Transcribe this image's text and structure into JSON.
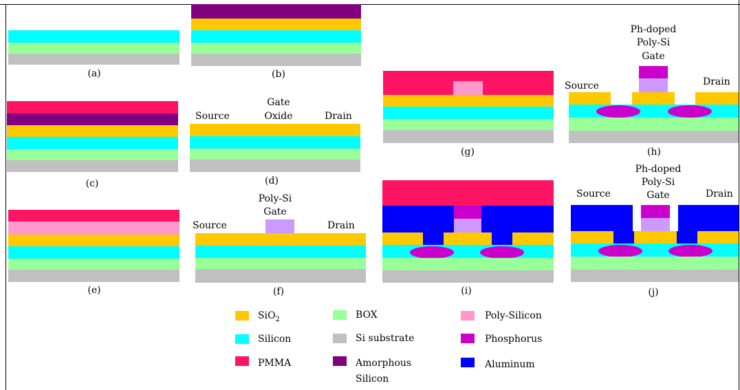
{
  "colors": {
    "sio2": "#FFC800",
    "silicon": "#00FFFF",
    "box": "#99FF99",
    "substrate": "#C0C0C0",
    "pmma": "#FF1464",
    "amorphous": "#800080",
    "polysilicon": "#FF99CC",
    "poly_gate": "#CC99FF",
    "phosphorus": "#CC00CC",
    "aluminum": "#0000FF"
  },
  "panels": {
    "a": {
      "caption": "(a)"
    },
    "b": {
      "caption": "(b)"
    },
    "c": {
      "caption": "(c)"
    },
    "d": {
      "caption": "(d)",
      "source": "Source",
      "gate_line1": "Gate",
      "gate_line2": "Oxide",
      "drain": "Drain"
    },
    "e": {
      "caption": "(e)"
    },
    "f": {
      "caption": "(f)",
      "source": "Source",
      "gate_line1": "Poly-Si",
      "gate_line2": "Gate",
      "drain": "Drain"
    },
    "g": {
      "caption": "(g)"
    },
    "h": {
      "caption": "(h)",
      "source": "Source",
      "gate_line1": "Ph-doped",
      "gate_line2": "Poly-Si",
      "gate_line3": "Gate",
      "drain": "Drain"
    },
    "i": {
      "caption": "(i)"
    },
    "j": {
      "caption": "(j)",
      "source": "Source",
      "gate_line1": "Ph-doped",
      "gate_line2": "Poly-Si",
      "gate_line3": "Gate",
      "drain": "Drain"
    }
  },
  "legend": {
    "sio2_main": "SiO",
    "sio2_sub": "2",
    "silicon": "Silicon",
    "pmma": "PMMA",
    "box": "BOX",
    "substrate": "Si substrate",
    "amorphous_line1": "Amorphous",
    "amorphous_line2": "Silicon",
    "polysilicon": "Poly-Silicon",
    "phosphorus": "Phosphorus",
    "aluminum": "Aluminum"
  }
}
